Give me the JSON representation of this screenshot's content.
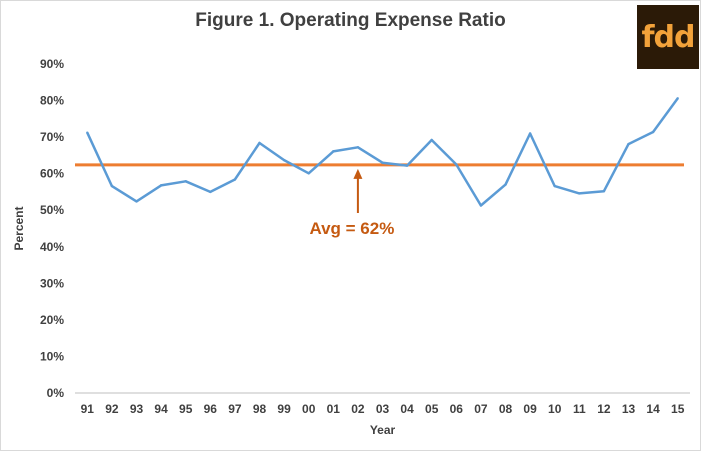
{
  "title": "Figure 1.  Operating Expense Ratio",
  "logo_text": "fdd",
  "chart_data": {
    "type": "line",
    "title": "Figure 1.  Operating Expense Ratio",
    "xlabel": "Year",
    "ylabel": "Percent",
    "categories": [
      "91",
      "92",
      "93",
      "94",
      "95",
      "96",
      "97",
      "98",
      "99",
      "00",
      "01",
      "02",
      "03",
      "04",
      "05",
      "06",
      "07",
      "08",
      "09",
      "10",
      "11",
      "12",
      "13",
      "14",
      "15"
    ],
    "series": [
      {
        "values": [
          71.2,
          56.6,
          52.4,
          56.8,
          57.9,
          55.0,
          58.4,
          68.4,
          63.7,
          60.1,
          66.1,
          67.2,
          63.0,
          62.2,
          69.2,
          62.5,
          51.3,
          57.0,
          71.0,
          56.6,
          54.6,
          55.2,
          68.1,
          71.4,
          80.6
        ],
        "color": "#5b9bd5"
      }
    ],
    "average": {
      "value": 62.4,
      "label": "Avg = 62%",
      "color": "#ed7d31",
      "arrow_category": "02"
    },
    "ylim": [
      0,
      90
    ],
    "yticks": [
      0,
      10,
      20,
      30,
      40,
      50,
      60,
      70,
      80,
      90
    ],
    "ytick_suffix": "%",
    "grid": false,
    "colors": {
      "line": "#5b9bd5",
      "avg_line": "#ed7d31",
      "annotation": "#c55a11",
      "axis": "#bfbfbf",
      "text": "#404040"
    }
  }
}
